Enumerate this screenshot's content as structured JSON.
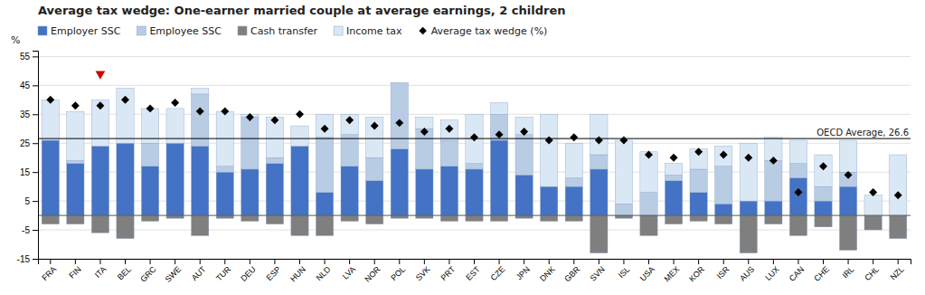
{
  "chart_data": {
    "type": "bar",
    "title": "Average tax wedge: One-earner married couple at average earnings, 2 children",
    "y_label": "%",
    "categories": [
      "FRA",
      "FIN",
      "ITA",
      "BEL",
      "GRC",
      "SWE",
      "AUT",
      "TUR",
      "DEU",
      "ESP",
      "HUN",
      "NLD",
      "LVA",
      "NOR",
      "POL",
      "SVK",
      "PRT",
      "EST",
      "CZE",
      "JPN",
      "DNK",
      "GBR",
      "SVN",
      "ISL",
      "USA",
      "MEX",
      "KOR",
      "ISR",
      "AUS",
      "LUX",
      "CAN",
      "CHE",
      "IRL",
      "CHL",
      "NZL"
    ],
    "series": [
      {
        "name": "Employer SSC",
        "type": "bar",
        "color": "#4472C4",
        "values": [
          26,
          18,
          24,
          25,
          17,
          25,
          24,
          15,
          16,
          18,
          24,
          8,
          17,
          12,
          23,
          16,
          17,
          16,
          26,
          14,
          10,
          10,
          16,
          0,
          0,
          12,
          8,
          4,
          5,
          5,
          13,
          5,
          10,
          0,
          0
        ]
      },
      {
        "name": "Employee SSC",
        "type": "bar",
        "color": "#B8CCE4",
        "values": [
          0,
          1,
          0,
          0,
          8,
          0,
          18,
          2,
          18,
          2,
          0,
          19,
          11,
          8,
          23,
          14,
          9,
          2,
          9,
          14,
          0,
          3,
          5,
          4,
          8,
          2,
          8,
          13,
          0,
          14,
          5,
          5,
          5,
          0,
          0
        ]
      },
      {
        "name": "Cash transfer",
        "type": "bar",
        "color": "#7F7F7F",
        "values": [
          -3,
          -3,
          -6,
          -8,
          -2,
          -1,
          -7,
          -1,
          -2,
          -3,
          -7,
          -7,
          -2,
          -3,
          -1,
          -1,
          -2,
          -2,
          -2,
          -1,
          -2,
          -2,
          -13,
          -1,
          -7,
          -3,
          -2,
          -3,
          -13,
          -3,
          -7,
          -4,
          -12,
          -5,
          -8
        ]
      },
      {
        "name": "Income tax",
        "type": "bar",
        "color": "#DAE8F5",
        "values": [
          14,
          17,
          16,
          19,
          12,
          12,
          2,
          19,
          1,
          14,
          7,
          8,
          7,
          14,
          0,
          4,
          7,
          17,
          4,
          6,
          25,
          12,
          14,
          22,
          14,
          4,
          7,
          7,
          20,
          8,
          8,
          11,
          11,
          7,
          21
        ]
      },
      {
        "name": "Average tax wedge (%)",
        "type": "scatter",
        "marker": "diamond",
        "color": "#000000",
        "values": [
          40,
          38,
          38,
          40,
          37,
          39,
          36,
          36,
          34,
          33,
          35,
          30,
          33,
          31,
          32,
          29,
          30,
          27,
          28,
          29,
          26,
          27,
          26,
          26,
          21,
          20,
          22,
          21,
          20,
          19,
          8,
          17,
          14,
          8,
          7
        ]
      }
    ],
    "stacked": true,
    "ylim": [
      -15,
      57
    ],
    "yticks": [
      -15,
      -5,
      5,
      15,
      25,
      35,
      45,
      55
    ],
    "grid": true,
    "legend": "upper left",
    "reference_line": {
      "value": 26.6,
      "label": "OECD Average, 26.6",
      "color": "#000000"
    },
    "highlight": {
      "category": "ITA",
      "value": 49,
      "marker": "triangle-down",
      "color": "#CC0000"
    }
  }
}
